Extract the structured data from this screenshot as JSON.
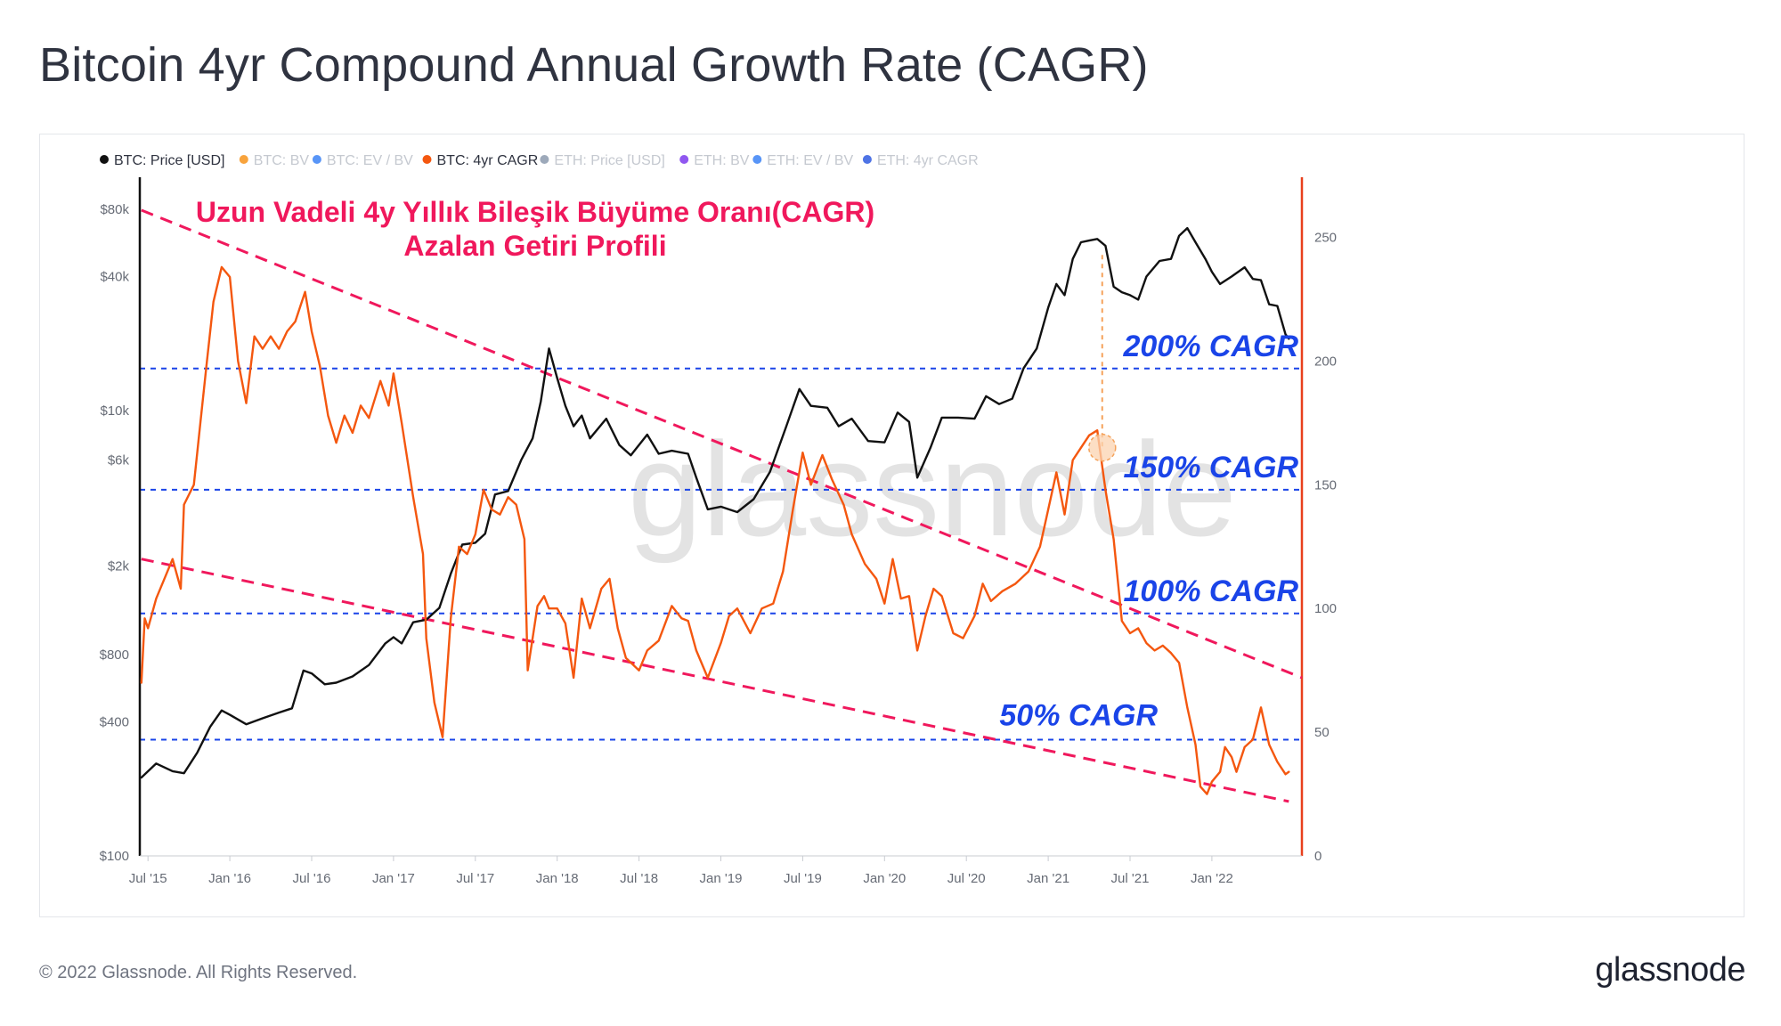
{
  "title": "Bitcoin 4yr Compound Annual Growth Rate (CAGR)",
  "footer": {
    "copyright": "© 2022 Glassnode. All Rights Reserved.",
    "logo": "glassnode"
  },
  "watermark": "glassnode",
  "colors": {
    "price": "#111111",
    "cagr": "#f4570f",
    "trend": "#f0185c",
    "ref": "#1a44e8",
    "axis_right": "#e8401c",
    "highlight": "#f5a25a"
  },
  "legend": [
    {
      "label": "BTC: Price [USD]",
      "color": "#111111",
      "active": true
    },
    {
      "label": "BTC: BV",
      "color": "#f7931a",
      "active": false
    },
    {
      "label": "BTC: EV / BV",
      "color": "#3b82f6",
      "active": false
    },
    {
      "label": "BTC: 4yr CAGR",
      "color": "#f4570f",
      "active": true
    },
    {
      "label": "ETH: Price [USD]",
      "color": "#8c9aae",
      "active": false
    },
    {
      "label": "ETH: BV",
      "color": "#7c3aed",
      "active": false
    },
    {
      "label": "ETH: EV / BV",
      "color": "#3b82f6",
      "active": false
    },
    {
      "label": "ETH: 4yr CAGR",
      "color": "#2f5be0",
      "active": false
    }
  ],
  "annotation": {
    "line1": "Uzun Vadeli 4y Yıllık Bileşik Büyüme Oranı(CAGR)",
    "line2": "Azalan Getiri Profili"
  },
  "chart_data": {
    "type": "line",
    "x_range": [
      2015.45,
      2022.55
    ],
    "x_ticks": [
      {
        "label": "Jul '15",
        "t": 2015.5
      },
      {
        "label": "Jan '16",
        "t": 2016.0
      },
      {
        "label": "Jul '16",
        "t": 2016.5
      },
      {
        "label": "Jan '17",
        "t": 2017.0
      },
      {
        "label": "Jul '17",
        "t": 2017.5
      },
      {
        "label": "Jan '18",
        "t": 2018.0
      },
      {
        "label": "Jul '18",
        "t": 2018.5
      },
      {
        "label": "Jan '19",
        "t": 2019.0
      },
      {
        "label": "Jul '19",
        "t": 2019.5
      },
      {
        "label": "Jan '20",
        "t": 2020.0
      },
      {
        "label": "Jul '20",
        "t": 2020.5
      },
      {
        "label": "Jan '21",
        "t": 2021.0
      },
      {
        "label": "Jul '21",
        "t": 2021.5
      },
      {
        "label": "Jan '22",
        "t": 2022.0
      }
    ],
    "y_left": {
      "scale": "log",
      "range": [
        100,
        100000
      ],
      "ticks": [
        {
          "label": "$80k",
          "v": 80000
        },
        {
          "label": "$40k",
          "v": 40000
        },
        {
          "label": "$10k",
          "v": 10000
        },
        {
          "label": "$6k",
          "v": 6000
        },
        {
          "label": "$2k",
          "v": 2000
        },
        {
          "label": "$800",
          "v": 800
        },
        {
          "label": "$400",
          "v": 400
        },
        {
          "label": "$100",
          "v": 100
        }
      ]
    },
    "y_right": {
      "scale": "linear",
      "range": [
        0,
        270
      ],
      "ticks": [
        {
          "label": "250",
          "v": 250
        },
        {
          "label": "200",
          "v": 200
        },
        {
          "label": "150",
          "v": 150
        },
        {
          "label": "100",
          "v": 100
        },
        {
          "label": "50",
          "v": 50
        },
        {
          "label": "0",
          "v": 0
        }
      ]
    },
    "reference_lines": [
      {
        "label": "200% CAGR",
        "v": 197
      },
      {
        "label": "150% CAGR",
        "v": 148
      },
      {
        "label": "100% CAGR",
        "v": 98
      },
      {
        "label": "50% CAGR",
        "v": 47
      }
    ],
    "trend_lines": [
      {
        "from": [
          2015.46,
          261
        ],
        "to": [
          2022.55,
          72
        ]
      },
      {
        "from": [
          2015.46,
          120
        ],
        "to": [
          2022.47,
          22
        ]
      }
    ],
    "highlight": {
      "t": 2021.33,
      "v": 165
    },
    "series": [
      {
        "name": "BTC: Price [USD]",
        "axis": "left",
        "points": [
          [
            2015.46,
            225
          ],
          [
            2015.55,
            260
          ],
          [
            2015.65,
            240
          ],
          [
            2015.72,
            235
          ],
          [
            2015.8,
            290
          ],
          [
            2015.88,
            380
          ],
          [
            2015.95,
            450
          ],
          [
            2016.0,
            430
          ],
          [
            2016.1,
            390
          ],
          [
            2016.2,
            415
          ],
          [
            2016.3,
            440
          ],
          [
            2016.38,
            460
          ],
          [
            2016.45,
            680
          ],
          [
            2016.5,
            660
          ],
          [
            2016.58,
            590
          ],
          [
            2016.65,
            600
          ],
          [
            2016.75,
            640
          ],
          [
            2016.85,
            720
          ],
          [
            2016.95,
            900
          ],
          [
            2017.0,
            960
          ],
          [
            2017.05,
            900
          ],
          [
            2017.12,
            1120
          ],
          [
            2017.2,
            1150
          ],
          [
            2017.28,
            1300
          ],
          [
            2017.35,
            1850
          ],
          [
            2017.42,
            2500
          ],
          [
            2017.5,
            2550
          ],
          [
            2017.56,
            2800
          ],
          [
            2017.62,
            4200
          ],
          [
            2017.7,
            4350
          ],
          [
            2017.78,
            6000
          ],
          [
            2017.85,
            7500
          ],
          [
            2017.9,
            11000
          ],
          [
            2017.95,
            19000
          ],
          [
            2018.0,
            14000
          ],
          [
            2018.05,
            10500
          ],
          [
            2018.1,
            8500
          ],
          [
            2018.15,
            9500
          ],
          [
            2018.2,
            7500
          ],
          [
            2018.3,
            9200
          ],
          [
            2018.38,
            7000
          ],
          [
            2018.45,
            6300
          ],
          [
            2018.55,
            7800
          ],
          [
            2018.62,
            6400
          ],
          [
            2018.7,
            6600
          ],
          [
            2018.8,
            6400
          ],
          [
            2018.85,
            5000
          ],
          [
            2018.92,
            3600
          ],
          [
            2019.0,
            3700
          ],
          [
            2019.1,
            3500
          ],
          [
            2019.2,
            4000
          ],
          [
            2019.3,
            5300
          ],
          [
            2019.4,
            8500
          ],
          [
            2019.48,
            12500
          ],
          [
            2019.55,
            10500
          ],
          [
            2019.65,
            10300
          ],
          [
            2019.72,
            8500
          ],
          [
            2019.8,
            9200
          ],
          [
            2019.9,
            7300
          ],
          [
            2020.0,
            7200
          ],
          [
            2020.08,
            9800
          ],
          [
            2020.15,
            8900
          ],
          [
            2020.2,
            5000
          ],
          [
            2020.28,
            6800
          ],
          [
            2020.35,
            9300
          ],
          [
            2020.45,
            9300
          ],
          [
            2020.55,
            9200
          ],
          [
            2020.62,
            11600
          ],
          [
            2020.7,
            10700
          ],
          [
            2020.78,
            11300
          ],
          [
            2020.85,
            15500
          ],
          [
            2020.93,
            19000
          ],
          [
            2021.0,
            29000
          ],
          [
            2021.05,
            37000
          ],
          [
            2021.1,
            33000
          ],
          [
            2021.15,
            48000
          ],
          [
            2021.2,
            57000
          ],
          [
            2021.25,
            58000
          ],
          [
            2021.3,
            59000
          ],
          [
            2021.35,
            55000
          ],
          [
            2021.4,
            36000
          ],
          [
            2021.45,
            34000
          ],
          [
            2021.5,
            33000
          ],
          [
            2021.55,
            31500
          ],
          [
            2021.6,
            40000
          ],
          [
            2021.68,
            47000
          ],
          [
            2021.75,
            48000
          ],
          [
            2021.8,
            61000
          ],
          [
            2021.85,
            66000
          ],
          [
            2021.9,
            57000
          ],
          [
            2021.96,
            48000
          ],
          [
            2022.0,
            42000
          ],
          [
            2022.05,
            37000
          ],
          [
            2022.12,
            40000
          ],
          [
            2022.2,
            44000
          ],
          [
            2022.25,
            39000
          ],
          [
            2022.3,
            38500
          ],
          [
            2022.35,
            30000
          ],
          [
            2022.4,
            29500
          ],
          [
            2022.45,
            22000
          ],
          [
            2022.47,
            21000
          ]
        ]
      },
      {
        "name": "BTC: 4yr CAGR",
        "axis": "right",
        "points": [
          [
            2015.46,
            70
          ],
          [
            2015.48,
            96
          ],
          [
            2015.5,
            92
          ],
          [
            2015.55,
            104
          ],
          [
            2015.6,
            112
          ],
          [
            2015.65,
            120
          ],
          [
            2015.7,
            108
          ],
          [
            2015.72,
            142
          ],
          [
            2015.78,
            150
          ],
          [
            2015.82,
            175
          ],
          [
            2015.86,
            200
          ],
          [
            2015.9,
            224
          ],
          [
            2015.95,
            238
          ],
          [
            2016.0,
            234
          ],
          [
            2016.05,
            200
          ],
          [
            2016.1,
            183
          ],
          [
            2016.15,
            210
          ],
          [
            2016.2,
            205
          ],
          [
            2016.25,
            210
          ],
          [
            2016.3,
            205
          ],
          [
            2016.35,
            212
          ],
          [
            2016.4,
            216
          ],
          [
            2016.46,
            228
          ],
          [
            2016.5,
            212
          ],
          [
            2016.55,
            198
          ],
          [
            2016.6,
            178
          ],
          [
            2016.65,
            167
          ],
          [
            2016.7,
            178
          ],
          [
            2016.75,
            171
          ],
          [
            2016.8,
            182
          ],
          [
            2016.85,
            177
          ],
          [
            2016.92,
            192
          ],
          [
            2016.97,
            182
          ],
          [
            2017.0,
            195
          ],
          [
            2017.05,
            175
          ],
          [
            2017.12,
            145
          ],
          [
            2017.18,
            122
          ],
          [
            2017.2,
            88
          ],
          [
            2017.25,
            62
          ],
          [
            2017.3,
            48
          ],
          [
            2017.35,
            96
          ],
          [
            2017.4,
            125
          ],
          [
            2017.45,
            122
          ],
          [
            2017.5,
            130
          ],
          [
            2017.55,
            148
          ],
          [
            2017.6,
            140
          ],
          [
            2017.65,
            138
          ],
          [
            2017.7,
            145
          ],
          [
            2017.75,
            142
          ],
          [
            2017.8,
            128
          ],
          [
            2017.82,
            75
          ],
          [
            2017.88,
            101
          ],
          [
            2017.92,
            105
          ],
          [
            2017.95,
            100
          ],
          [
            2018.0,
            100
          ],
          [
            2018.05,
            94
          ],
          [
            2018.1,
            72
          ],
          [
            2018.15,
            104
          ],
          [
            2018.2,
            92
          ],
          [
            2018.27,
            108
          ],
          [
            2018.32,
            112
          ],
          [
            2018.37,
            92
          ],
          [
            2018.42,
            80
          ],
          [
            2018.5,
            75
          ],
          [
            2018.55,
            83
          ],
          [
            2018.62,
            87
          ],
          [
            2018.7,
            101
          ],
          [
            2018.76,
            96
          ],
          [
            2018.8,
            95
          ],
          [
            2018.85,
            83
          ],
          [
            2018.92,
            72
          ],
          [
            2019.0,
            86
          ],
          [
            2019.05,
            97
          ],
          [
            2019.1,
            100
          ],
          [
            2019.18,
            90
          ],
          [
            2019.25,
            100
          ],
          [
            2019.32,
            102
          ],
          [
            2019.38,
            115
          ],
          [
            2019.44,
            140
          ],
          [
            2019.5,
            163
          ],
          [
            2019.55,
            150
          ],
          [
            2019.62,
            162
          ],
          [
            2019.68,
            152
          ],
          [
            2019.75,
            142
          ],
          [
            2019.8,
            130
          ],
          [
            2019.88,
            118
          ],
          [
            2019.95,
            112
          ],
          [
            2020.0,
            102
          ],
          [
            2020.05,
            120
          ],
          [
            2020.1,
            104
          ],
          [
            2020.15,
            105
          ],
          [
            2020.2,
            83
          ],
          [
            2020.25,
            97
          ],
          [
            2020.3,
            108
          ],
          [
            2020.35,
            105
          ],
          [
            2020.42,
            90
          ],
          [
            2020.48,
            88
          ],
          [
            2020.55,
            97
          ],
          [
            2020.6,
            110
          ],
          [
            2020.65,
            103
          ],
          [
            2020.72,
            107
          ],
          [
            2020.8,
            110
          ],
          [
            2020.88,
            115
          ],
          [
            2020.95,
            125
          ],
          [
            2021.0,
            140
          ],
          [
            2021.05,
            155
          ],
          [
            2021.1,
            138
          ],
          [
            2021.15,
            160
          ],
          [
            2021.2,
            165
          ],
          [
            2021.25,
            170
          ],
          [
            2021.3,
            172
          ],
          [
            2021.35,
            148
          ],
          [
            2021.4,
            128
          ],
          [
            2021.45,
            95
          ],
          [
            2021.5,
            90
          ],
          [
            2021.55,
            92
          ],
          [
            2021.6,
            86
          ],
          [
            2021.65,
            83
          ],
          [
            2021.7,
            85
          ],
          [
            2021.75,
            82
          ],
          [
            2021.8,
            78
          ],
          [
            2021.85,
            60
          ],
          [
            2021.9,
            45
          ],
          [
            2021.93,
            28
          ],
          [
            2021.97,
            25
          ],
          [
            2022.0,
            30
          ],
          [
            2022.05,
            34
          ],
          [
            2022.08,
            44
          ],
          [
            2022.12,
            40
          ],
          [
            2022.15,
            34
          ],
          [
            2022.2,
            44
          ],
          [
            2022.25,
            47
          ],
          [
            2022.3,
            60
          ],
          [
            2022.35,
            45
          ],
          [
            2022.4,
            38
          ],
          [
            2022.45,
            33
          ],
          [
            2022.47,
            34
          ]
        ]
      }
    ]
  }
}
